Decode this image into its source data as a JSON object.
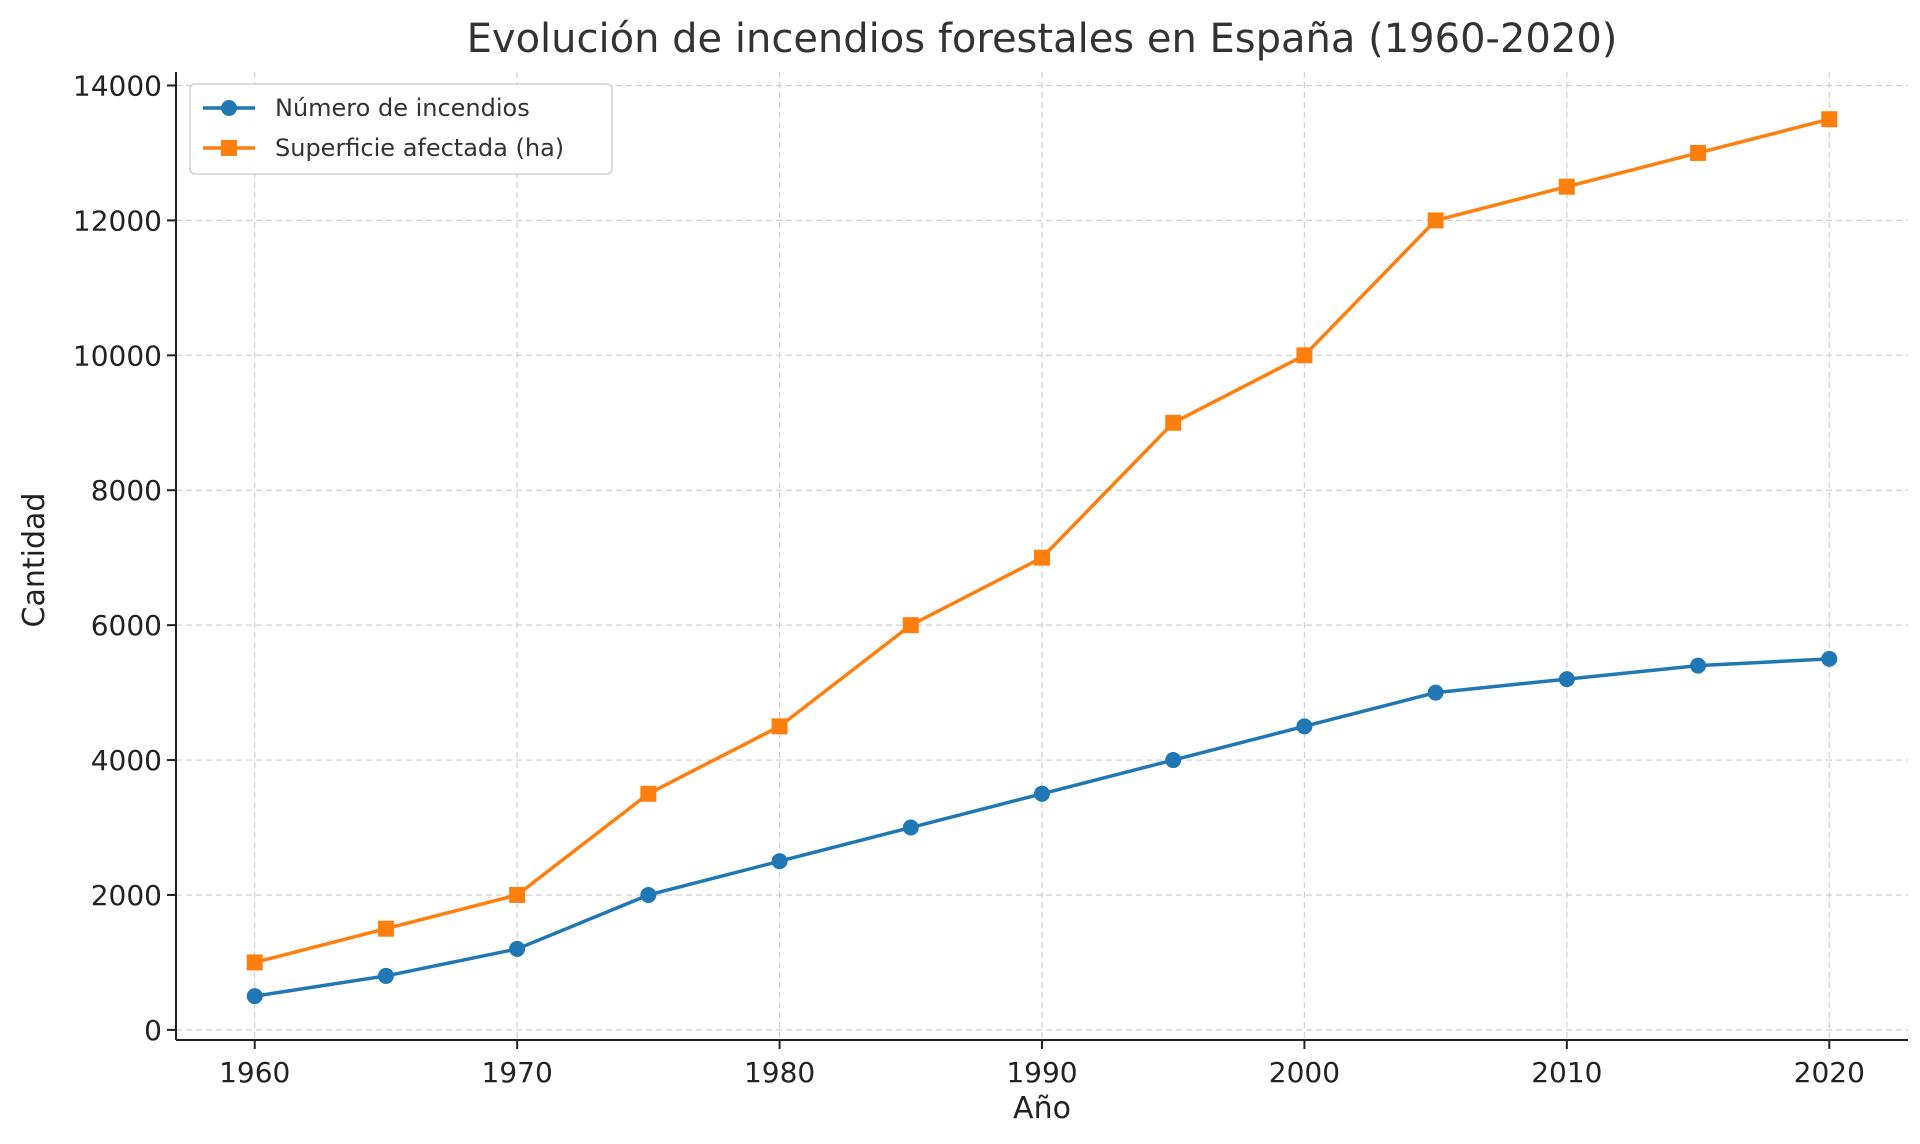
{
  "chart_data": {
    "type": "line",
    "title": "Evolución de incendios forestales en España (1960-2020)",
    "xlabel": "Año",
    "ylabel": "Cantidad",
    "x": [
      1960,
      1965,
      1970,
      1975,
      1980,
      1985,
      1990,
      1995,
      2000,
      2005,
      2010,
      2015,
      2020
    ],
    "xticks": [
      1960,
      1970,
      1980,
      1990,
      2000,
      2010,
      2020
    ],
    "yticks": [
      0,
      2000,
      4000,
      6000,
      8000,
      10000,
      12000,
      14000
    ],
    "xlim": [
      1957,
      2023
    ],
    "ylim": [
      -150,
      14200
    ],
    "grid": true,
    "legend_position": "top-left",
    "series": [
      {
        "name": "Número de incendios",
        "color": "#1f77b4",
        "marker": "circle",
        "values": [
          500,
          800,
          1200,
          2000,
          2500,
          3000,
          3500,
          4000,
          4500,
          5000,
          5200,
          5400,
          5500
        ]
      },
      {
        "name": "Superficie afectada (ha)",
        "color": "#ff7f0e",
        "marker": "square",
        "values": [
          1000,
          1500,
          2000,
          3500,
          4500,
          6000,
          7000,
          9000,
          10000,
          12000,
          12500,
          13000,
          13500
        ]
      }
    ]
  }
}
